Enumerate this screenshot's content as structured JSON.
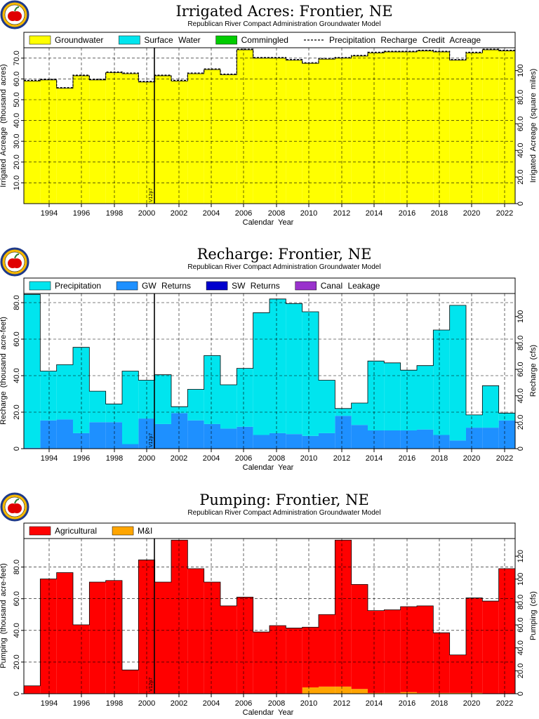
{
  "colors": {
    "groundwater": "#ffff00",
    "surface_water": "#00e5ee",
    "commingled": "#00cc00",
    "precipitation": "#00e5ee",
    "gw_returns": "#1e90ff",
    "sw_returns": "#0000cd",
    "canal_leakage": "#9932cc",
    "agricultural": "#ff0000",
    "mi": "#ffa500",
    "credit_line": "#000000",
    "grid": "#000000",
    "apple_ring": "#1e3a8a",
    "apple": "#e00000"
  },
  "icons": [
    "apple-logo-icon"
  ],
  "version_label": "V12p7",
  "chart_data": [
    {
      "type": "bar",
      "title": "Irrigated Acres: Frontier, NE",
      "subtitle": "Republican River Compact Administration Groundwater Model",
      "xlabel": "Calendar Year",
      "ylabel": "Irrigated Acreage (thousand acres)",
      "ylabel2": "Irrigated Acreage (square miles)",
      "xlim": [
        1993,
        2023
      ],
      "ylim": [
        0,
        75
      ],
      "ylim2": [
        0,
        117.2
      ],
      "yticks": [
        "10.0",
        "20.0",
        "30.0",
        "40.0",
        "50.0",
        "60.0",
        "70.0"
      ],
      "y2ticks": [
        "0",
        "20.0",
        "40.0",
        "60.0",
        "80.0",
        "100"
      ],
      "xticks": [
        "1994",
        "1996",
        "1998",
        "2000",
        "2002",
        "2004",
        "2006",
        "2008",
        "2010",
        "2012",
        "2014",
        "2016",
        "2018",
        "2020",
        "2022"
      ],
      "grid": true,
      "legend_position": "top",
      "legend": [
        {
          "label": "Groundwater",
          "kind": "box",
          "color_key": "groundwater"
        },
        {
          "label": "Surface Water",
          "kind": "box",
          "color_key": "surface_water"
        },
        {
          "label": "Commingled",
          "kind": "box",
          "color_key": "commingled"
        },
        {
          "label": "Precipitation Recharge Credit Acreage",
          "kind": "dashed",
          "color_key": "credit_line"
        }
      ],
      "categories": [
        1993,
        1994,
        1995,
        1996,
        1997,
        1998,
        1999,
        2000,
        2001,
        2002,
        2003,
        2004,
        2005,
        2006,
        2007,
        2008,
        2009,
        2010,
        2011,
        2012,
        2013,
        2014,
        2015,
        2016,
        2017,
        2018,
        2019,
        2020,
        2021,
        2022
      ],
      "series": [
        {
          "name": "Groundwater",
          "color_key": "groundwater",
          "values": [
            59.0,
            59.5,
            55.5,
            61.5,
            59.5,
            63.0,
            62.5,
            58.5,
            61.5,
            59.0,
            62.5,
            64.5,
            62.0,
            74.0,
            70.0,
            70.0,
            69.0,
            67.5,
            69.5,
            70.0,
            71.0,
            72.5,
            73.0,
            73.0,
            73.5,
            73.0,
            69.0,
            72.5,
            74.0,
            73.5
          ]
        },
        {
          "name": "Surface Water",
          "color_key": "surface_water",
          "values": [
            0,
            0,
            0,
            0,
            0,
            0,
            0,
            0,
            0,
            0,
            0,
            0,
            0,
            0,
            0,
            0,
            0,
            0,
            0,
            0,
            0,
            0,
            0,
            0,
            0,
            0,
            0,
            0,
            0,
            0
          ]
        },
        {
          "name": "Commingled",
          "color_key": "commingled",
          "values": [
            0,
            0,
            0,
            0,
            0,
            0,
            0,
            0,
            0,
            0,
            0,
            0,
            0,
            0,
            0,
            0,
            0,
            0,
            0,
            0,
            0,
            0,
            0,
            0,
            0,
            0,
            0,
            0,
            0,
            0
          ]
        }
      ],
      "line": {
        "name": "Precipitation Recharge Credit Acreage",
        "color_key": "credit_line",
        "values": [
          59.0,
          59.5,
          55.5,
          61.5,
          59.5,
          63.0,
          62.5,
          58.5,
          61.5,
          59.0,
          62.5,
          64.5,
          62.0,
          74.0,
          70.0,
          70.0,
          69.0,
          67.5,
          69.5,
          70.0,
          71.0,
          72.5,
          73.0,
          73.0,
          73.5,
          73.0,
          69.0,
          72.5,
          74.0,
          73.5
        ]
      }
    },
    {
      "type": "bar",
      "title": "Recharge: Frontier, NE",
      "subtitle": "Republican River Compact Administration Groundwater Model",
      "xlabel": "Calendar Year",
      "ylabel": "Recharge (thousand acre-feet)",
      "ylabel2": "Recharge (cfs)",
      "xlim": [
        1993,
        2023
      ],
      "ylim": [
        0,
        85
      ],
      "ylim2": [
        0,
        117.4
      ],
      "yticks": [
        "0",
        "20.0",
        "40.0",
        "60.0",
        "80.0"
      ],
      "y2ticks": [
        "0",
        "20.0",
        "40.0",
        "60.0",
        "80.0",
        "100"
      ],
      "xticks": [
        "1994",
        "1996",
        "1998",
        "2000",
        "2002",
        "2004",
        "2006",
        "2008",
        "2010",
        "2012",
        "2014",
        "2016",
        "2018",
        "2020",
        "2022"
      ],
      "grid": true,
      "legend_position": "top",
      "legend": [
        {
          "label": "Precipitation",
          "kind": "box",
          "color_key": "precipitation"
        },
        {
          "label": "GW Returns",
          "kind": "box",
          "color_key": "gw_returns"
        },
        {
          "label": "SW Returns",
          "kind": "box",
          "color_key": "sw_returns"
        },
        {
          "label": "Canal Leakage",
          "kind": "box",
          "color_key": "canal_leakage"
        }
      ],
      "categories": [
        1993,
        1994,
        1995,
        1996,
        1997,
        1998,
        1999,
        2000,
        2001,
        2002,
        2003,
        2004,
        2005,
        2006,
        2007,
        2008,
        2009,
        2010,
        2011,
        2012,
        2013,
        2014,
        2015,
        2016,
        2017,
        2018,
        2019,
        2020,
        2021,
        2022
      ],
      "series": [
        {
          "name": "GW Returns",
          "color_key": "gw_returns",
          "values": [
            0.5,
            15.5,
            16.0,
            8.5,
            14.5,
            14.5,
            2.5,
            16.5,
            13.5,
            19.5,
            15.5,
            13.5,
            11.0,
            12.0,
            7.5,
            8.5,
            8.0,
            7.0,
            8.5,
            18.0,
            13.0,
            10.0,
            10.0,
            10.0,
            10.5,
            7.5,
            4.5,
            11.5,
            11.5,
            15.5
          ]
        },
        {
          "name": "Precipitation",
          "color_key": "precipitation",
          "values": [
            84.0,
            27.0,
            30.0,
            47.0,
            17.0,
            10.0,
            40.0,
            21.0,
            27.0,
            3.5,
            17.0,
            37.5,
            24.0,
            32.0,
            67.0,
            73.5,
            71.5,
            68.0,
            29.0,
            4.0,
            12.0,
            38.0,
            37.0,
            33.0,
            35.0,
            57.5,
            74.0,
            7.0,
            23.0,
            4.0
          ]
        },
        {
          "name": "SW Returns",
          "color_key": "sw_returns",
          "values": [
            0,
            0,
            0,
            0,
            0,
            0,
            0,
            0,
            0,
            0,
            0,
            0,
            0,
            0,
            0,
            0,
            0,
            0,
            0,
            0,
            0,
            0,
            0,
            0,
            0,
            0,
            0,
            0,
            0,
            0
          ]
        },
        {
          "name": "Canal Leakage",
          "color_key": "canal_leakage",
          "values": [
            0,
            0,
            0,
            0,
            0,
            0,
            0,
            0,
            0,
            0,
            0,
            0,
            0,
            0,
            0,
            0,
            0,
            0,
            0,
            0,
            0,
            0,
            0,
            0,
            0,
            0,
            0,
            0,
            0,
            0
          ]
        }
      ]
    },
    {
      "type": "bar",
      "title": "Pumping: Frontier, NE",
      "subtitle": "Republican River Compact Administration Groundwater Model",
      "xlabel": "Calendar Year",
      "ylabel": "Pumping (thousand acre-feet)",
      "ylabel2": "Pumping (cfs)",
      "xlim": [
        1993,
        2023
      ],
      "ylim": [
        0,
        98
      ],
      "ylim2": [
        0,
        135.4
      ],
      "yticks": [
        "0",
        "20.0",
        "40.0",
        "60.0",
        "80.0"
      ],
      "y2ticks": [
        "0",
        "20.0",
        "40.0",
        "60.0",
        "80.0",
        "100",
        "120"
      ],
      "xticks": [
        "1994",
        "1996",
        "1998",
        "2000",
        "2002",
        "2004",
        "2006",
        "2008",
        "2010",
        "2012",
        "2014",
        "2016",
        "2018",
        "2020",
        "2022"
      ],
      "grid": true,
      "legend_position": "top",
      "legend": [
        {
          "label": "Agricultural",
          "kind": "box",
          "color_key": "agricultural"
        },
        {
          "label": "M&I",
          "kind": "box",
          "color_key": "mi"
        }
      ],
      "categories": [
        1993,
        1994,
        1995,
        1996,
        1997,
        1998,
        1999,
        2000,
        2001,
        2002,
        2003,
        2004,
        2005,
        2006,
        2007,
        2008,
        2009,
        2010,
        2011,
        2012,
        2013,
        2014,
        2015,
        2016,
        2017,
        2018,
        2019,
        2020,
        2021,
        2022
      ],
      "series": [
        {
          "name": "M&I",
          "color_key": "mi",
          "values": [
            0,
            0,
            0,
            0,
            0,
            0,
            0,
            0,
            0,
            0,
            0,
            0,
            0,
            0,
            0,
            0,
            0,
            4.0,
            4.5,
            4.5,
            3.0,
            0.5,
            0.5,
            1.0,
            0.5,
            0.5,
            0.5,
            0.5,
            0,
            0
          ]
        },
        {
          "name": "Agricultural",
          "color_key": "agricultural",
          "values": [
            5.0,
            72.5,
            76.5,
            43.5,
            70.5,
            71.5,
            15.0,
            84.5,
            70.5,
            97.0,
            79.0,
            70.5,
            55.5,
            61.0,
            39.0,
            43.0,
            41.5,
            38.0,
            45.5,
            92.5,
            66.0,
            52.0,
            52.5,
            54.0,
            55.0,
            38.0,
            24.0,
            60.0,
            58.5,
            79.0
          ]
        }
      ]
    }
  ]
}
